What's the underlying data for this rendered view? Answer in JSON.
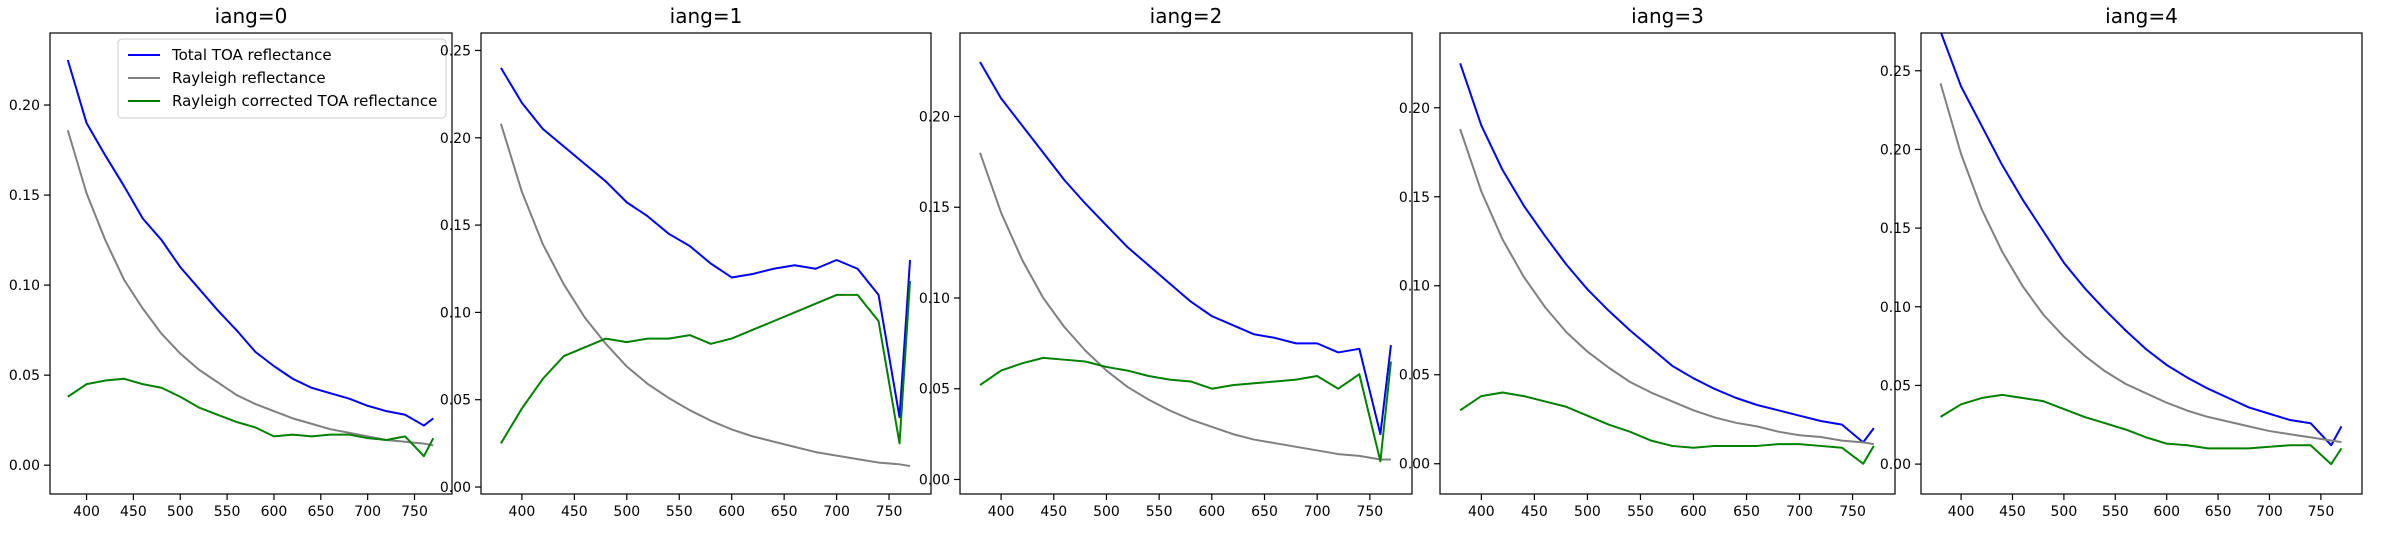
{
  "chart_data": [
    {
      "type": "line",
      "title": "iang=0",
      "legend": "upper right",
      "x": [
        380,
        400,
        420,
        440,
        460,
        480,
        500,
        520,
        540,
        560,
        580,
        600,
        620,
        640,
        660,
        680,
        700,
        720,
        740,
        760,
        770
      ],
      "xlim": [
        361,
        790
      ],
      "xticks": [
        400,
        450,
        500,
        550,
        600,
        650,
        700,
        750
      ],
      "ylim": [
        -0.016,
        0.24
      ],
      "yticks": [
        {
          "value": 0,
          "label": "0.00"
        },
        {
          "value": 0.05,
          "label": "0.05"
        },
        {
          "value": 0.1,
          "label": "0.10"
        },
        {
          "value": 0.15,
          "label": "0.15"
        },
        {
          "value": 0.2,
          "label": "0.20"
        }
      ],
      "series": [
        {
          "name": "Total TOA reflectance",
          "color": "#0000ff",
          "values": [
            0.225,
            0.19,
            0.172,
            0.155,
            0.137,
            0.125,
            0.11,
            0.098,
            0.086,
            0.075,
            0.063,
            0.055,
            0.048,
            0.043,
            0.04,
            0.037,
            0.033,
            0.03,
            0.028,
            0.022,
            0.026
          ]
        },
        {
          "name": "Rayleigh reflectance",
          "color": "#808080",
          "values": [
            0.186,
            0.151,
            0.125,
            0.103,
            0.087,
            0.073,
            0.062,
            0.053,
            0.046,
            0.039,
            0.034,
            0.03,
            0.026,
            0.023,
            0.02,
            0.018,
            0.016,
            0.014,
            0.013,
            0.012,
            0.011
          ]
        },
        {
          "name": "Rayleigh corrected TOA reflectance",
          "color": "#008000",
          "values": [
            0.038,
            0.045,
            0.047,
            0.048,
            0.045,
            0.043,
            0.038,
            0.032,
            0.028,
            0.024,
            0.021,
            0.016,
            0.017,
            0.016,
            0.017,
            0.017,
            0.015,
            0.014,
            0.016,
            0.005,
            0.015
          ]
        }
      ]
    },
    {
      "type": "line",
      "title": "iang=1",
      "x": [
        380,
        400,
        420,
        440,
        460,
        480,
        500,
        520,
        540,
        560,
        580,
        600,
        620,
        640,
        660,
        680,
        700,
        720,
        740,
        760,
        770
      ],
      "xlim": [
        361,
        790
      ],
      "xticks": [
        400,
        450,
        500,
        550,
        600,
        650,
        700,
        750
      ],
      "ylim": [
        -0.004,
        0.26
      ],
      "yticks": [
        {
          "value": 0,
          "label": "0.00"
        },
        {
          "value": 0.05,
          "label": "0.05"
        },
        {
          "value": 0.1,
          "label": "0.10"
        },
        {
          "value": 0.15,
          "label": "0.15"
        },
        {
          "value": 0.2,
          "label": "0.20"
        },
        {
          "value": 0.25,
          "label": "0.25"
        }
      ],
      "series": [
        {
          "color": "#0000ff",
          "values": [
            0.24,
            0.22,
            0.205,
            0.195,
            0.185,
            0.175,
            0.163,
            0.155,
            0.145,
            0.138,
            0.128,
            0.12,
            0.122,
            0.125,
            0.127,
            0.125,
            0.13,
            0.125,
            0.11,
            0.04,
            0.13
          ]
        },
        {
          "color": "#808080",
          "values": [
            0.208,
            0.169,
            0.139,
            0.116,
            0.097,
            0.082,
            0.069,
            0.059,
            0.051,
            0.044,
            0.038,
            0.033,
            0.029,
            0.026,
            0.023,
            0.02,
            0.018,
            0.016,
            0.014,
            0.013,
            0.012
          ]
        },
        {
          "color": "#008000",
          "values": [
            0.025,
            0.045,
            0.062,
            0.075,
            0.08,
            0.085,
            0.083,
            0.085,
            0.085,
            0.087,
            0.082,
            0.085,
            0.09,
            0.095,
            0.1,
            0.105,
            0.11,
            0.11,
            0.095,
            0.025,
            0.118
          ]
        }
      ]
    },
    {
      "type": "line",
      "title": "iang=2",
      "x": [
        380,
        400,
        420,
        440,
        460,
        480,
        500,
        520,
        540,
        560,
        580,
        600,
        620,
        640,
        660,
        680,
        700,
        720,
        740,
        760,
        770
      ],
      "xlim": [
        361,
        790
      ],
      "xticks": [
        400,
        450,
        500,
        550,
        600,
        650,
        700,
        750
      ],
      "ylim": [
        -0.008,
        0.246
      ],
      "yticks": [
        {
          "value": 0,
          "label": "0.00"
        },
        {
          "value": 0.05,
          "label": "0.05"
        },
        {
          "value": 0.1,
          "label": "0.10"
        },
        {
          "value": 0.15,
          "label": "0.15"
        },
        {
          "value": 0.2,
          "label": "0.20"
        }
      ],
      "series": [
        {
          "color": "#0000ff",
          "values": [
            0.23,
            0.21,
            0.195,
            0.18,
            0.165,
            0.152,
            0.14,
            0.128,
            0.118,
            0.108,
            0.098,
            0.09,
            0.085,
            0.08,
            0.078,
            0.075,
            0.075,
            0.07,
            0.072,
            0.025,
            0.074
          ]
        },
        {
          "color": "#808080",
          "values": [
            0.18,
            0.147,
            0.121,
            0.1,
            0.084,
            0.071,
            0.06,
            0.051,
            0.044,
            0.038,
            0.033,
            0.029,
            0.025,
            0.022,
            0.02,
            0.018,
            0.016,
            0.014,
            0.013,
            0.011,
            0.011
          ]
        },
        {
          "color": "#008000",
          "values": [
            0.052,
            0.06,
            0.064,
            0.067,
            0.066,
            0.065,
            0.062,
            0.06,
            0.057,
            0.055,
            0.054,
            0.05,
            0.052,
            0.053,
            0.054,
            0.055,
            0.057,
            0.05,
            0.058,
            0.01,
            0.065
          ]
        }
      ]
    },
    {
      "type": "line",
      "title": "iang=3",
      "x": [
        380,
        400,
        420,
        440,
        460,
        480,
        500,
        520,
        540,
        560,
        580,
        600,
        620,
        640,
        660,
        680,
        700,
        720,
        740,
        760,
        770
      ],
      "xlim": [
        361,
        790
      ],
      "xticks": [
        400,
        450,
        500,
        550,
        600,
        650,
        700,
        750
      ],
      "ylim": [
        -0.017,
        0.242
      ],
      "yticks": [
        {
          "value": 0,
          "label": "0.00"
        },
        {
          "value": 0.05,
          "label": "0.05"
        },
        {
          "value": 0.1,
          "label": "0.10"
        },
        {
          "value": 0.15,
          "label": "0.15"
        },
        {
          "value": 0.2,
          "label": "0.20"
        }
      ],
      "series": [
        {
          "color": "#0000ff",
          "values": [
            0.225,
            0.19,
            0.165,
            0.145,
            0.128,
            0.112,
            0.098,
            0.086,
            0.075,
            0.065,
            0.055,
            0.048,
            0.042,
            0.037,
            0.033,
            0.03,
            0.027,
            0.024,
            0.022,
            0.012,
            0.02
          ]
        },
        {
          "color": "#808080",
          "values": [
            0.188,
            0.153,
            0.126,
            0.105,
            0.088,
            0.074,
            0.063,
            0.054,
            0.046,
            0.04,
            0.035,
            0.03,
            0.026,
            0.023,
            0.021,
            0.018,
            0.016,
            0.015,
            0.013,
            0.012,
            0.011
          ]
        },
        {
          "color": "#008000",
          "values": [
            0.03,
            0.038,
            0.04,
            0.038,
            0.035,
            0.032,
            0.027,
            0.022,
            0.018,
            0.013,
            0.01,
            0.009,
            0.01,
            0.01,
            0.01,
            0.011,
            0.011,
            0.01,
            0.009,
            0,
            0.01
          ]
        }
      ]
    },
    {
      "type": "line",
      "title": "iang=4",
      "x": [
        380,
        400,
        420,
        440,
        460,
        480,
        500,
        520,
        540,
        560,
        580,
        600,
        620,
        640,
        660,
        680,
        700,
        720,
        740,
        760,
        770
      ],
      "xlim": [
        361,
        790
      ],
      "xticks": [
        400,
        450,
        500,
        550,
        600,
        650,
        700,
        750
      ],
      "ylim": [
        -0.019,
        0.274
      ],
      "yticks": [
        {
          "value": 0,
          "label": "0.00"
        },
        {
          "value": 0.05,
          "label": "0.05"
        },
        {
          "value": 0.1,
          "label": "0.10"
        },
        {
          "value": 0.15,
          "label": "0.15"
        },
        {
          "value": 0.2,
          "label": "0.20"
        },
        {
          "value": 0.25,
          "label": "0.25"
        }
      ],
      "series": [
        {
          "color": "#0000ff",
          "values": [
            0.275,
            0.24,
            0.215,
            0.19,
            0.168,
            0.148,
            0.128,
            0.112,
            0.098,
            0.085,
            0.073,
            0.063,
            0.055,
            0.048,
            0.042,
            0.036,
            0.032,
            0.028,
            0.026,
            0.012,
            0.024
          ]
        },
        {
          "color": "#808080",
          "values": [
            0.242,
            0.197,
            0.162,
            0.135,
            0.113,
            0.095,
            0.081,
            0.069,
            0.059,
            0.051,
            0.045,
            0.039,
            0.034,
            0.03,
            0.027,
            0.024,
            0.021,
            0.019,
            0.017,
            0.015,
            0.014
          ]
        },
        {
          "color": "#008000",
          "values": [
            0.03,
            0.038,
            0.042,
            0.044,
            0.042,
            0.04,
            0.035,
            0.03,
            0.026,
            0.022,
            0.017,
            0.013,
            0.012,
            0.01,
            0.01,
            0.01,
            0.011,
            0.012,
            0.012,
            0,
            0.01
          ]
        }
      ]
    }
  ]
}
